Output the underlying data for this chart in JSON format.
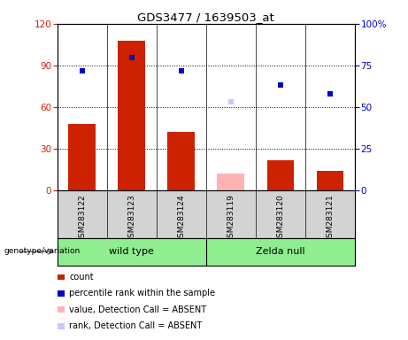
{
  "title": "GDS3477 / 1639503_at",
  "samples": [
    "GSM283122",
    "GSM283123",
    "GSM283124",
    "GSM283119",
    "GSM283120",
    "GSM283121"
  ],
  "bar_values": [
    48,
    108,
    42,
    12,
    22,
    14
  ],
  "bar_colors": [
    "#cc2200",
    "#cc2200",
    "#cc2200",
    "#ffb3b3",
    "#cc2200",
    "#cc2200"
  ],
  "rank_values": [
    72,
    80,
    72,
    53,
    63,
    58
  ],
  "rank_colors": [
    "#0000cc",
    "#0000cc",
    "#0000cc",
    "#c8c8ff",
    "#0000cc",
    "#0000cc"
  ],
  "ylim_left": [
    0,
    120
  ],
  "ylim_right": [
    0,
    100
  ],
  "yticks_left": [
    0,
    30,
    60,
    90,
    120
  ],
  "ytick_labels_left": [
    "0",
    "30",
    "60",
    "90",
    "120"
  ],
  "yticks_right": [
    0,
    25,
    50,
    75,
    100
  ],
  "ytick_labels_right": [
    "0",
    "25",
    "50",
    "75",
    "100%"
  ],
  "gridline_yticks": [
    30,
    60,
    90
  ],
  "group_labels": [
    "wild type",
    "Zelda null"
  ],
  "genotype_label": "genotype/variation",
  "legend_items": [
    {
      "label": "count",
      "color": "#cc2200",
      "type": "rect"
    },
    {
      "label": "percentile rank within the sample",
      "color": "#0000cc",
      "type": "square"
    },
    {
      "label": "value, Detection Call = ABSENT",
      "color": "#ffb3b3",
      "type": "rect"
    },
    {
      "label": "rank, Detection Call = ABSENT",
      "color": "#c8c8ff",
      "type": "square"
    }
  ],
  "bar_width": 0.55,
  "sample_bg_color": "#d3d3d3",
  "group_bg_color": "#90ee90",
  "plot_bg_color": "#ffffff"
}
